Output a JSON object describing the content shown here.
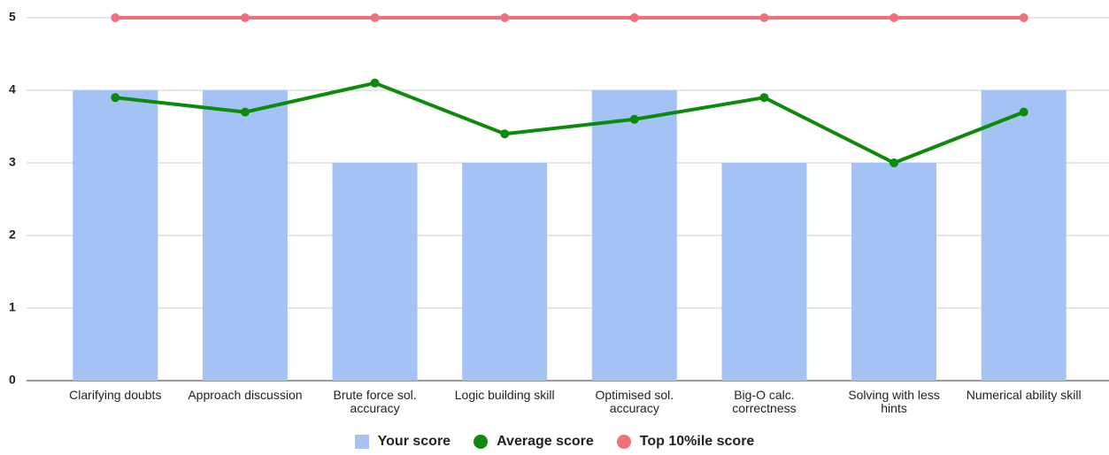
{
  "chart_data": {
    "type": "combo",
    "categories": [
      "Clarifying doubts",
      "Approach discussion",
      "Brute force sol. accuracy",
      "Logic building skill",
      "Optimised sol. accuracy",
      "Big-O calc. correctness",
      "Solving with less hints",
      "Numerical ability skill"
    ],
    "series": [
      {
        "name": "Your score",
        "type": "bar",
        "color": "#a4c2f4",
        "values": [
          4,
          4,
          3,
          3,
          4,
          3,
          3,
          4
        ]
      },
      {
        "name": "Average score",
        "type": "line",
        "color": "#0b8a0b",
        "values": [
          3.9,
          3.7,
          4.1,
          3.4,
          3.6,
          3.9,
          3.0,
          3.7
        ]
      },
      {
        "name": "Top 10%ile score",
        "type": "line",
        "color": "#f0707a",
        "values": [
          5,
          5,
          5,
          5,
          5,
          5,
          5,
          5
        ]
      }
    ],
    "ylim": [
      0,
      5
    ],
    "yticks": [
      0,
      1,
      2,
      3,
      4,
      5
    ],
    "grid": true,
    "legend": "bottom"
  }
}
